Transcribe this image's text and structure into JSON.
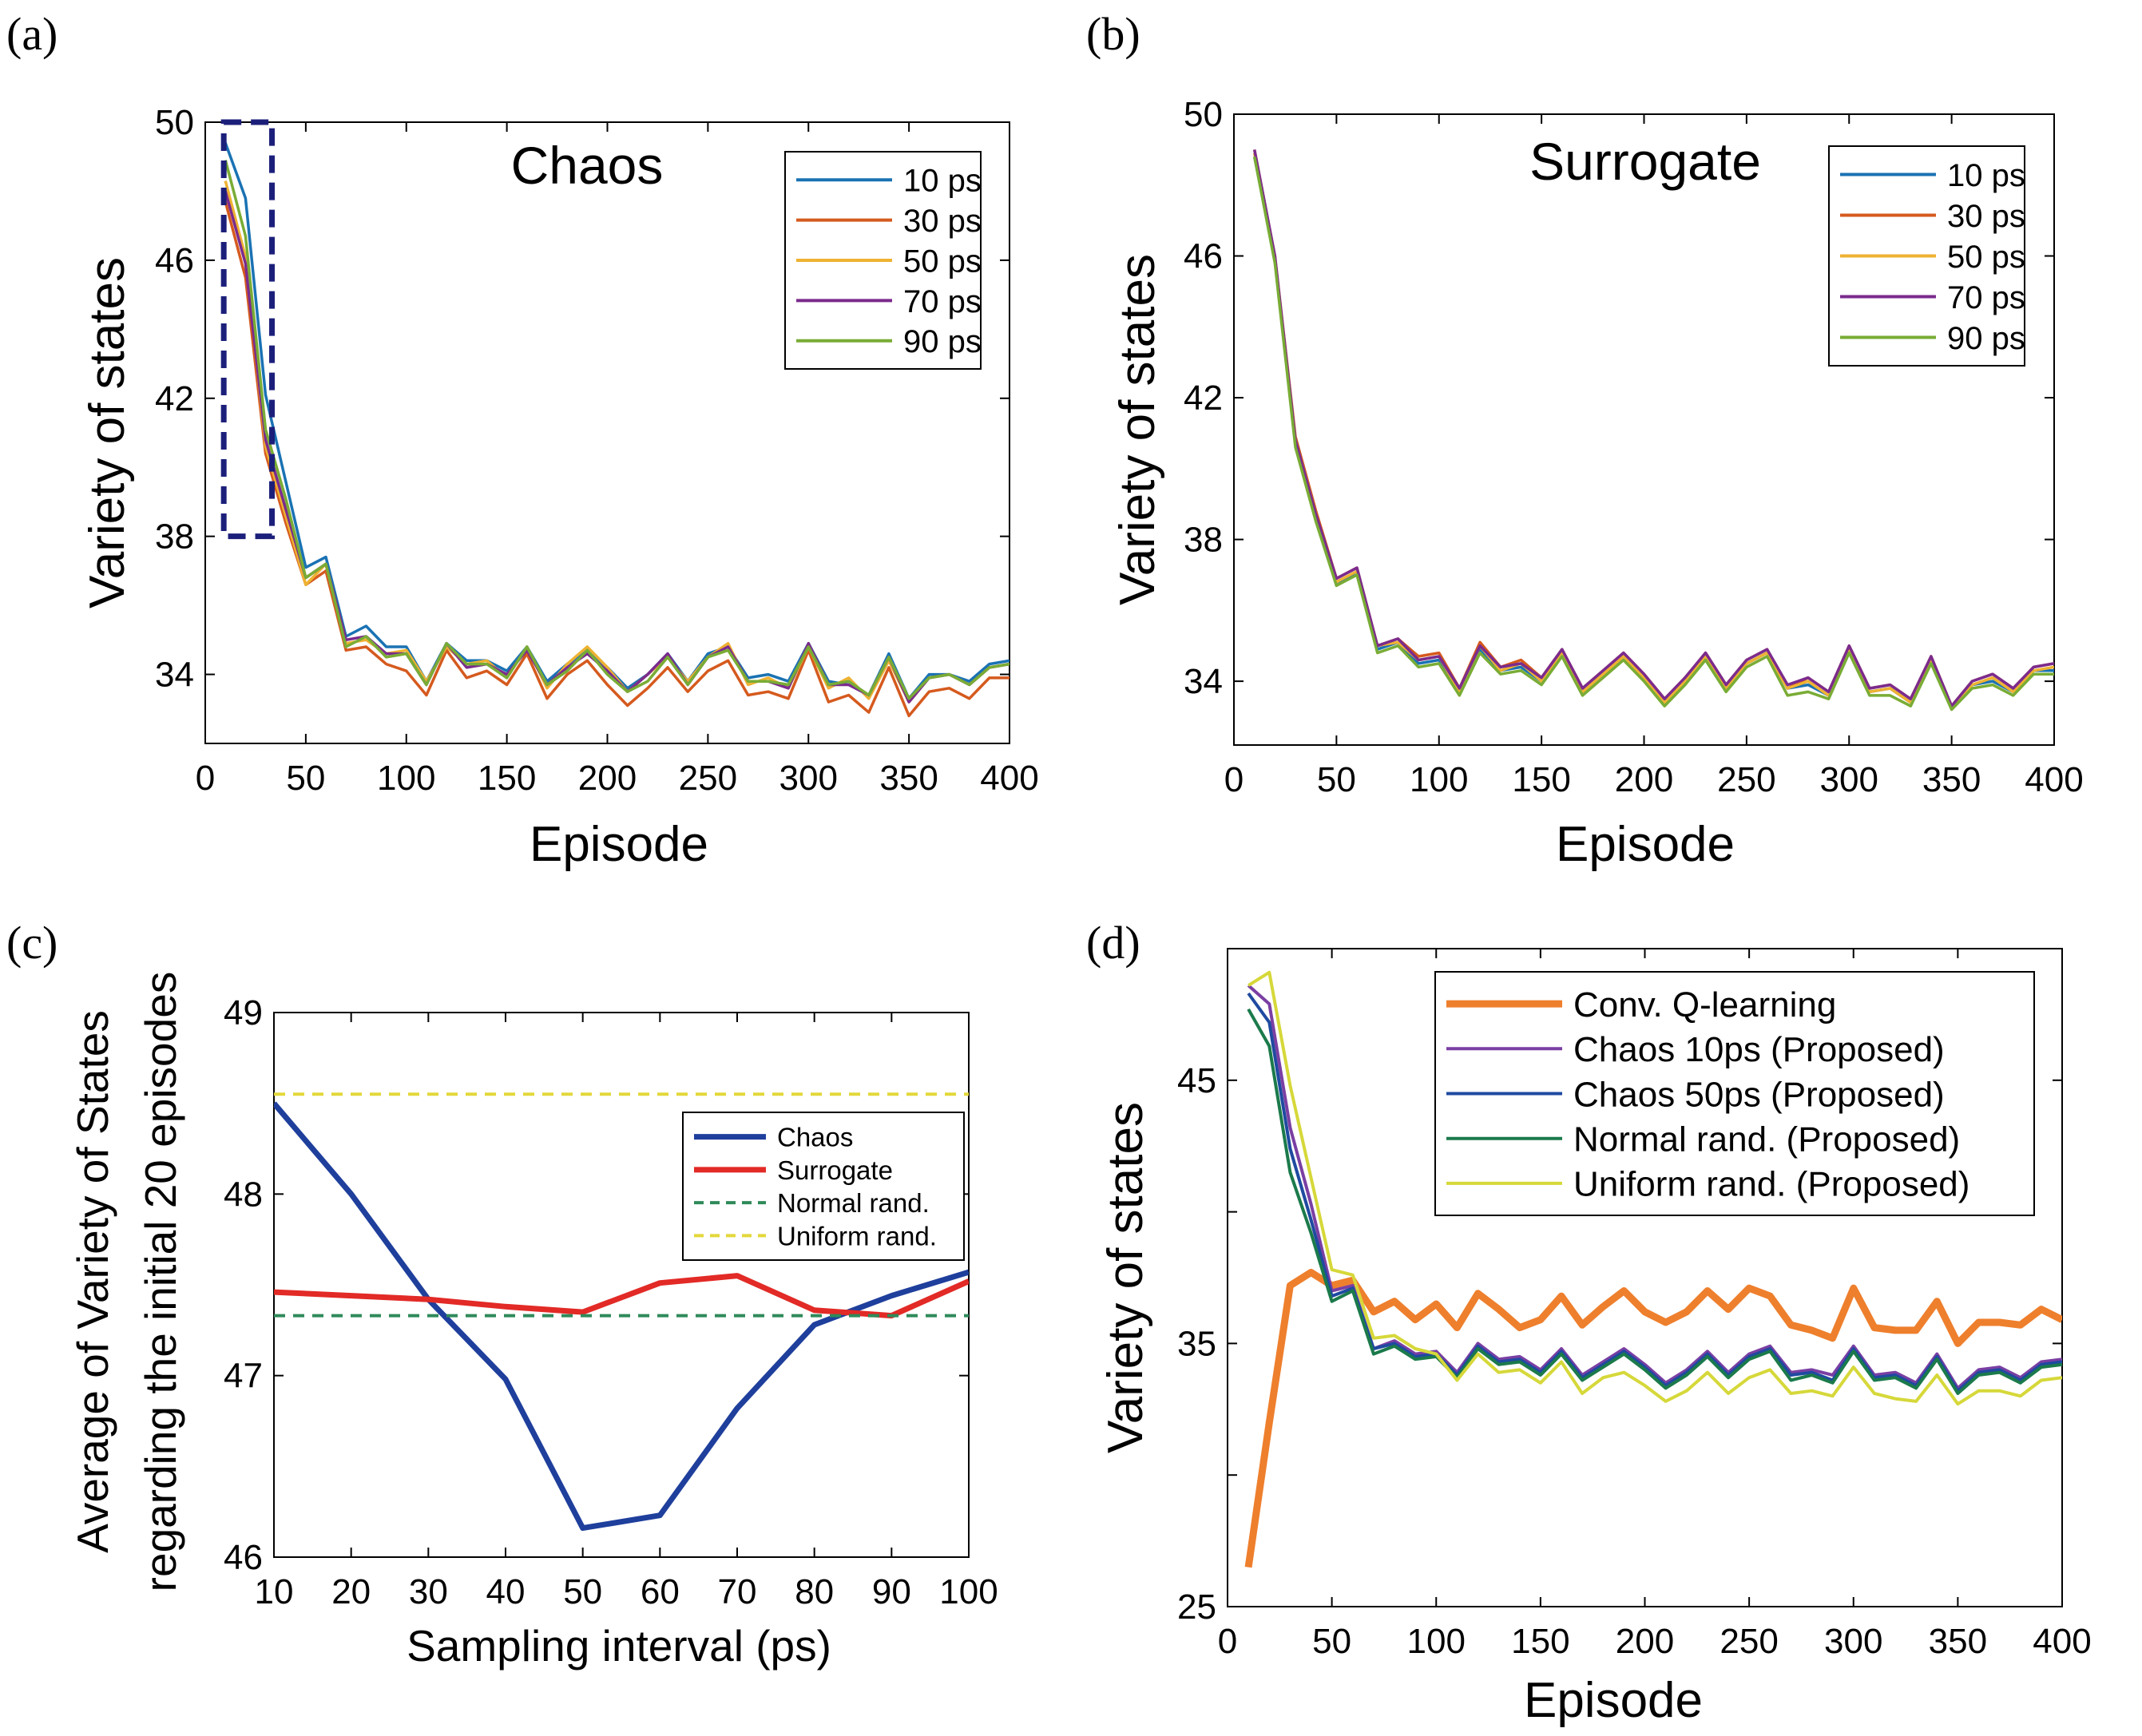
{
  "chart_data": [
    {
      "panel": "(a)",
      "type": "line",
      "title": "Chaos",
      "xlabel": "Episode",
      "ylabel": "Variety of states",
      "xlim": [
        0,
        400
      ],
      "ylim": [
        32,
        50
      ],
      "xticks": [
        0,
        50,
        100,
        150,
        200,
        250,
        300,
        350,
        400
      ],
      "yticks": [
        34,
        38,
        42,
        46,
        50
      ],
      "legend_position": "top-right",
      "highlight_box": {
        "x": [
          10,
          30
        ],
        "y": [
          38,
          50
        ]
      },
      "x": [
        10,
        20,
        30,
        40,
        50,
        60,
        70,
        80,
        90,
        100,
        110,
        120,
        130,
        140,
        150,
        160,
        170,
        180,
        190,
        200,
        210,
        220,
        230,
        240,
        250,
        260,
        270,
        280,
        290,
        300,
        310,
        320,
        330,
        340,
        350,
        360,
        370,
        380,
        390,
        400
      ],
      "series": [
        {
          "name": "10 ps",
          "color": "#1a72b3",
          "values": [
            49.4,
            47.8,
            42.1,
            39.6,
            37.1,
            37.4,
            35.1,
            35.4,
            34.8,
            34.8,
            33.8,
            34.9,
            34.4,
            34.4,
            34.1,
            34.8,
            33.8,
            34.3,
            34.7,
            34.2,
            33.6,
            34.0,
            34.6,
            33.8,
            34.6,
            34.8,
            33.9,
            34.0,
            33.8,
            34.9,
            33.8,
            33.7,
            33.4,
            34.6,
            33.3,
            34.0,
            34.0,
            33.8,
            34.3,
            34.4
          ]
        },
        {
          "name": "30 ps",
          "color": "#d55a1e",
          "values": [
            47.7,
            45.5,
            40.4,
            38.4,
            36.6,
            37.0,
            34.7,
            34.8,
            34.3,
            34.1,
            33.4,
            34.7,
            33.9,
            34.1,
            33.7,
            34.6,
            33.3,
            34.0,
            34.4,
            33.7,
            33.1,
            33.6,
            34.2,
            33.5,
            34.1,
            34.4,
            33.4,
            33.5,
            33.3,
            34.7,
            33.2,
            33.4,
            32.9,
            34.2,
            32.8,
            33.5,
            33.6,
            33.3,
            33.9,
            33.9
          ]
        },
        {
          "name": "50 ps",
          "color": "#eeb232",
          "values": [
            48.3,
            46.1,
            40.6,
            38.6,
            36.6,
            37.2,
            34.9,
            35.0,
            34.6,
            34.7,
            33.8,
            34.8,
            34.3,
            34.4,
            33.9,
            34.8,
            33.6,
            34.3,
            34.8,
            34.2,
            33.5,
            34.0,
            34.5,
            33.8,
            34.5,
            34.9,
            33.7,
            33.9,
            33.6,
            34.8,
            33.6,
            33.9,
            33.3,
            34.4,
            33.2,
            33.9,
            34.0,
            33.7,
            34.2,
            34.3
          ]
        },
        {
          "name": "70 ps",
          "color": "#7b2b8d",
          "values": [
            48.0,
            45.9,
            40.8,
            38.8,
            36.8,
            37.2,
            35.0,
            35.1,
            34.6,
            34.6,
            33.7,
            34.9,
            34.2,
            34.3,
            34.0,
            34.7,
            33.7,
            34.2,
            34.6,
            34.1,
            33.5,
            34.0,
            34.6,
            33.7,
            34.5,
            34.8,
            33.8,
            33.8,
            33.6,
            34.9,
            33.7,
            33.7,
            33.4,
            34.5,
            33.2,
            33.9,
            34.0,
            33.7,
            34.2,
            34.3
          ]
        },
        {
          "name": "90 ps",
          "color": "#79ac35",
          "values": [
            48.9,
            46.7,
            41.1,
            39.1,
            36.8,
            37.2,
            34.8,
            35.1,
            34.5,
            34.6,
            33.7,
            34.9,
            34.3,
            34.3,
            33.9,
            34.8,
            33.7,
            34.1,
            34.7,
            34.0,
            33.5,
            33.8,
            34.5,
            33.7,
            34.5,
            34.7,
            33.8,
            33.8,
            33.7,
            34.8,
            33.7,
            33.8,
            33.4,
            34.5,
            33.3,
            33.9,
            34.0,
            33.7,
            34.2,
            34.3
          ]
        }
      ]
    },
    {
      "panel": "(b)",
      "type": "line",
      "title": "Surrogate",
      "xlabel": "Episode",
      "ylabel": "Variety of states",
      "xlim": [
        0,
        400
      ],
      "ylim": [
        32.2,
        50
      ],
      "xticks": [
        0,
        50,
        100,
        150,
        200,
        250,
        300,
        350,
        400
      ],
      "yticks": [
        34,
        38,
        42,
        46,
        50
      ],
      "legend_position": "top-right",
      "x": [
        10,
        20,
        30,
        40,
        50,
        60,
        70,
        80,
        90,
        100,
        110,
        120,
        130,
        140,
        150,
        160,
        170,
        180,
        190,
        200,
        210,
        220,
        230,
        240,
        250,
        260,
        270,
        280,
        290,
        300,
        310,
        320,
        330,
        340,
        350,
        360,
        370,
        380,
        390,
        400
      ],
      "series": [
        {
          "name": "10 ps",
          "color": "#1a72b3",
          "values": [
            48.8,
            45.9,
            40.7,
            38.6,
            36.7,
            37.1,
            34.9,
            35.1,
            34.5,
            34.6,
            33.7,
            34.9,
            34.3,
            34.4,
            34.0,
            34.8,
            33.7,
            34.2,
            34.7,
            34.1,
            33.4,
            34.0,
            34.7,
            33.8,
            34.5,
            34.8,
            33.8,
            33.9,
            33.6,
            34.9,
            33.7,
            33.8,
            33.4,
            34.6,
            33.3,
            33.9,
            34.0,
            33.7,
            34.3,
            34.3
          ]
        },
        {
          "name": "30 ps",
          "color": "#d55a1e",
          "values": [
            49.0,
            46.0,
            40.9,
            38.8,
            36.9,
            37.2,
            35.0,
            35.2,
            34.7,
            34.8,
            33.8,
            35.1,
            34.4,
            34.6,
            34.1,
            34.9,
            33.8,
            34.3,
            34.8,
            34.2,
            33.5,
            34.1,
            34.8,
            33.9,
            34.6,
            34.9,
            33.8,
            34.1,
            33.7,
            35.0,
            33.8,
            33.9,
            33.5,
            34.7,
            33.3,
            34.0,
            34.2,
            33.8,
            34.4,
            34.5
          ]
        },
        {
          "name": "50 ps",
          "color": "#eeb232",
          "values": [
            48.9,
            45.9,
            40.8,
            38.7,
            36.8,
            37.1,
            35.0,
            35.1,
            34.6,
            34.7,
            33.7,
            35.0,
            34.3,
            34.5,
            34.0,
            34.8,
            33.7,
            34.2,
            34.7,
            34.1,
            33.4,
            34.0,
            34.7,
            33.8,
            34.5,
            34.8,
            33.8,
            34.0,
            33.6,
            34.9,
            33.7,
            33.8,
            33.4,
            34.6,
            33.3,
            33.9,
            34.1,
            33.7,
            34.3,
            34.4
          ]
        },
        {
          "name": "70 ps",
          "color": "#7b2b8d",
          "values": [
            49.0,
            46.0,
            40.8,
            38.7,
            36.9,
            37.2,
            35.0,
            35.2,
            34.6,
            34.7,
            33.8,
            35.0,
            34.4,
            34.5,
            34.1,
            34.9,
            33.8,
            34.3,
            34.8,
            34.2,
            33.5,
            34.1,
            34.8,
            33.9,
            34.6,
            34.9,
            33.9,
            34.1,
            33.7,
            35.0,
            33.8,
            33.9,
            33.5,
            34.7,
            33.3,
            34.0,
            34.2,
            33.8,
            34.4,
            34.5
          ]
        },
        {
          "name": "90 ps",
          "color": "#79ac35",
          "values": [
            48.8,
            45.8,
            40.6,
            38.5,
            36.7,
            37.0,
            34.8,
            35.0,
            34.4,
            34.5,
            33.6,
            34.8,
            34.2,
            34.3,
            33.9,
            34.7,
            33.6,
            34.1,
            34.6,
            34.0,
            33.3,
            33.9,
            34.6,
            33.7,
            34.4,
            34.7,
            33.6,
            33.7,
            33.5,
            34.8,
            33.6,
            33.6,
            33.3,
            34.5,
            33.2,
            33.8,
            33.9,
            33.6,
            34.2,
            34.2
          ]
        }
      ]
    },
    {
      "panel": "(c)",
      "type": "line",
      "title": "",
      "xlabel": "Sampling interval (ps)",
      "ylabel_line1": "Average of Variety of States",
      "ylabel_line2": "regarding the initial 20 episodes",
      "xlim": [
        10,
        100
      ],
      "ylim": [
        46,
        49
      ],
      "xticks": [
        10,
        20,
        30,
        40,
        50,
        60,
        70,
        80,
        90,
        100
      ],
      "yticks": [
        46,
        47,
        48,
        49
      ],
      "legend_position": "right",
      "x": [
        10,
        20,
        30,
        40,
        50,
        60,
        70,
        80,
        90,
        100
      ],
      "series": [
        {
          "name": "Chaos",
          "color": "#1f3f9c",
          "style": "solid",
          "values": [
            48.5,
            48.0,
            47.42,
            46.98,
            46.16,
            46.23,
            46.82,
            47.28,
            47.44,
            47.57
          ]
        },
        {
          "name": "Surrogate",
          "color": "#e22a26",
          "style": "solid",
          "values": [
            47.46,
            47.44,
            47.42,
            47.38,
            47.35,
            47.51,
            47.55,
            47.36,
            47.33,
            47.52
          ]
        },
        {
          "name": "Normal rand.",
          "color": "#2f8a5a",
          "style": "dashed",
          "values": [
            47.33,
            47.33,
            47.33,
            47.33,
            47.33,
            47.33,
            47.33,
            47.33,
            47.33,
            47.33
          ]
        },
        {
          "name": "Uniform rand.",
          "color": "#e3d83a",
          "style": "dashed",
          "values": [
            48.55,
            48.55,
            48.55,
            48.55,
            48.55,
            48.55,
            48.55,
            48.55,
            48.55,
            48.55
          ]
        }
      ]
    },
    {
      "panel": "(d)",
      "type": "line",
      "title": "",
      "xlabel": "Episode",
      "ylabel": "Variety of states",
      "xlim": [
        0,
        400
      ],
      "ylim": [
        25,
        50
      ],
      "xticks": [
        0,
        50,
        100,
        150,
        200,
        250,
        300,
        350,
        400
      ],
      "yticks": [
        25,
        35,
        45
      ],
      "legend_position": "top-right",
      "x": [
        10,
        20,
        30,
        40,
        50,
        60,
        70,
        80,
        90,
        100,
        110,
        120,
        130,
        140,
        150,
        160,
        170,
        180,
        190,
        200,
        210,
        220,
        230,
        240,
        250,
        260,
        270,
        280,
        290,
        300,
        310,
        320,
        330,
        340,
        350,
        360,
        370,
        380,
        390,
        400
      ],
      "series": [
        {
          "name": "Conv. Q-learning",
          "color": "#ee7f2d",
          "width": 9,
          "values": [
            26.5,
            32.0,
            37.2,
            37.7,
            37.2,
            37.4,
            36.2,
            36.6,
            35.9,
            36.5,
            35.6,
            36.9,
            36.3,
            35.6,
            35.9,
            36.8,
            35.7,
            36.4,
            37.0,
            36.2,
            35.8,
            36.2,
            37.0,
            36.3,
            37.1,
            36.8,
            35.7,
            35.5,
            35.2,
            37.1,
            35.6,
            35.5,
            35.5,
            36.6,
            35.0,
            35.8,
            35.8,
            35.7,
            36.3,
            35.9
          ]
        },
        {
          "name": "Chaos 10ps (Proposed)",
          "color": "#7a3fa3",
          "width": 4,
          "values": [
            48.6,
            47.9,
            43.2,
            40.3,
            37.0,
            37.2,
            34.8,
            35.1,
            34.6,
            34.7,
            33.9,
            35.0,
            34.4,
            34.5,
            34.0,
            34.8,
            33.8,
            34.3,
            34.8,
            34.2,
            33.5,
            34.0,
            34.7,
            33.9,
            34.6,
            34.9,
            33.9,
            34.0,
            33.8,
            34.9,
            33.8,
            33.9,
            33.5,
            34.6,
            33.3,
            34.0,
            34.1,
            33.7,
            34.3,
            34.4
          ]
        },
        {
          "name": "Chaos 50ps (Proposed)",
          "color": "#1f4aa0",
          "width": 4,
          "values": [
            48.3,
            47.2,
            42.4,
            39.7,
            36.8,
            37.1,
            34.8,
            35.0,
            34.5,
            34.6,
            33.8,
            34.9,
            34.3,
            34.4,
            33.9,
            34.7,
            33.7,
            34.2,
            34.7,
            34.1,
            33.4,
            33.9,
            34.6,
            33.8,
            34.5,
            34.8,
            33.8,
            33.9,
            33.6,
            34.8,
            33.7,
            33.8,
            33.4,
            34.5,
            33.2,
            33.9,
            34.0,
            33.6,
            34.2,
            34.3
          ]
        },
        {
          "name": "Normal rand. (Proposed)",
          "color": "#1b7a4b",
          "width": 4,
          "values": [
            47.7,
            46.3,
            41.5,
            39.2,
            36.6,
            37.0,
            34.6,
            34.9,
            34.4,
            34.5,
            33.7,
            34.8,
            34.2,
            34.3,
            33.8,
            34.6,
            33.6,
            34.1,
            34.6,
            34.0,
            33.3,
            33.8,
            34.5,
            33.7,
            34.4,
            34.7,
            33.6,
            33.8,
            33.5,
            34.7,
            33.6,
            33.7,
            33.3,
            34.4,
            33.1,
            33.8,
            33.9,
            33.5,
            34.1,
            34.2
          ]
        },
        {
          "name": "Uniform rand. (Proposed)",
          "color": "#d6d83a",
          "width": 4,
          "values": [
            48.6,
            49.1,
            44.8,
            41.3,
            37.8,
            37.6,
            35.2,
            35.3,
            34.8,
            34.6,
            33.6,
            34.6,
            33.9,
            34.0,
            33.5,
            34.3,
            33.1,
            33.7,
            33.9,
            33.4,
            32.8,
            33.2,
            33.9,
            33.1,
            33.7,
            34.0,
            33.1,
            33.2,
            33.0,
            34.1,
            33.1,
            32.9,
            32.8,
            33.8,
            32.7,
            33.2,
            33.2,
            33.0,
            33.6,
            33.7
          ]
        }
      ]
    }
  ]
}
